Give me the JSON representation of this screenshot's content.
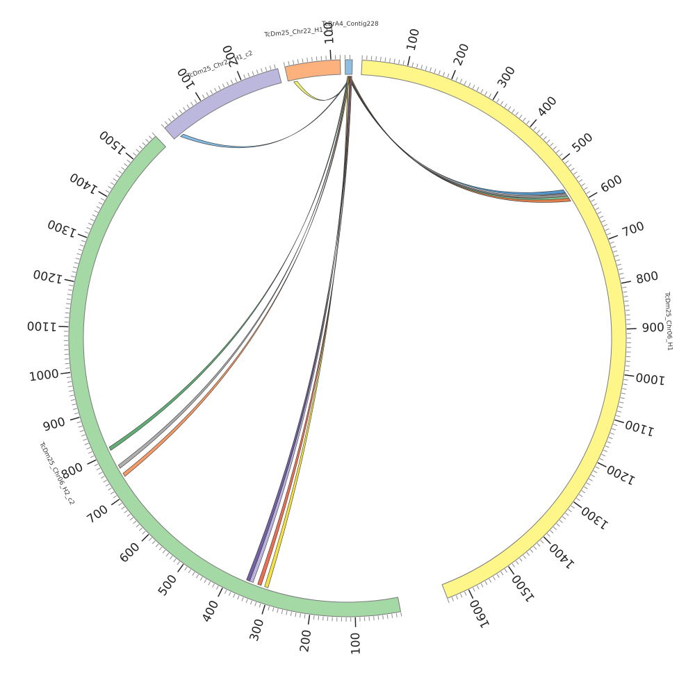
{
  "chart_data": {
    "type": "chord",
    "segments": [
      {
        "name": "TcBrA4_Contig228",
        "color": "#8fbfe0",
        "length": 15,
        "tick_labels": []
      },
      {
        "name": "TcDm25_Chr06_H1",
        "color": "#fff68a",
        "length": 1650,
        "tick_labels": [
          "100",
          "200",
          "300",
          "400",
          "500",
          "600",
          "700",
          "800",
          "900",
          "1000",
          "1100",
          "1200",
          "1300",
          "1400",
          "1500",
          "1600"
        ]
      },
      {
        "name": "TcDm25_Chr06_H2_c2",
        "color": "#a4d8a4",
        "length": 1570,
        "tick_labels": [
          "100",
          "200",
          "300",
          "400",
          "500",
          "600",
          "700",
          "800",
          "900",
          "1000",
          "1100",
          "1200",
          "1300",
          "1400",
          "1500"
        ]
      },
      {
        "name": "TcDm25_Chr22_H1_c2",
        "color": "#bcb7dd",
        "length": 285,
        "tick_labels": [
          "100",
          "200"
        ]
      },
      {
        "name": "TcDm25_Chr22_H1_c1",
        "color": "#fdb27e",
        "length": 120,
        "tick_labels": [
          "100"
        ]
      }
    ],
    "links": [
      {
        "source": "TcBrA4_Contig228",
        "target": "TcDm25_Chr06_H1",
        "target_pos": 555,
        "color": "#4a90c8"
      },
      {
        "source": "TcBrA4_Contig228",
        "target": "TcDm25_Chr06_H1",
        "target_pos": 565,
        "color": "#888888"
      },
      {
        "source": "TcBrA4_Contig228",
        "target": "TcDm25_Chr06_H1",
        "target_pos": 573,
        "color": "#7cc48f"
      },
      {
        "source": "TcBrA4_Contig228",
        "target": "TcDm25_Chr06_H1",
        "target_pos": 578,
        "color": "#e07a48"
      },
      {
        "source": "TcBrA4_Contig228",
        "target": "TcDm25_Chr22_H1_c2",
        "target_pos": 15,
        "color": "#7fb8e0"
      },
      {
        "source": "TcBrA4_Contig228",
        "target": "TcDm25_Chr22_H1_c1",
        "target_pos": 12,
        "color": "#eeee70"
      },
      {
        "source": "TcBrA4_Contig228",
        "target": "TcDm25_Chr06_H2_c2",
        "target_pos": 805,
        "color": "#5aa86e"
      },
      {
        "source": "TcBrA4_Contig228",
        "target": "TcDm25_Chr06_H2_c2",
        "target_pos": 758,
        "color": "#aaaaaa"
      },
      {
        "source": "TcBrA4_Contig228",
        "target": "TcDm25_Chr06_H2_c2",
        "target_pos": 736,
        "color": "#f2955e"
      },
      {
        "source": "TcBrA4_Contig228",
        "target": "TcDm25_Chr06_H2_c2",
        "target_pos": 350,
        "color": "#6a5aa0"
      },
      {
        "source": "TcBrA4_Contig228",
        "target": "TcDm25_Chr06_H2_c2",
        "target_pos": 342,
        "color": "#b8b2dc"
      },
      {
        "source": "TcBrA4_Contig228",
        "target": "TcDm25_Chr06_H2_c2",
        "target_pos": 322,
        "color": "#e8684a"
      },
      {
        "source": "TcBrA4_Contig228",
        "target": "TcDm25_Chr06_H2_c2",
        "target_pos": 305,
        "color": "#f3e03a"
      }
    ]
  }
}
